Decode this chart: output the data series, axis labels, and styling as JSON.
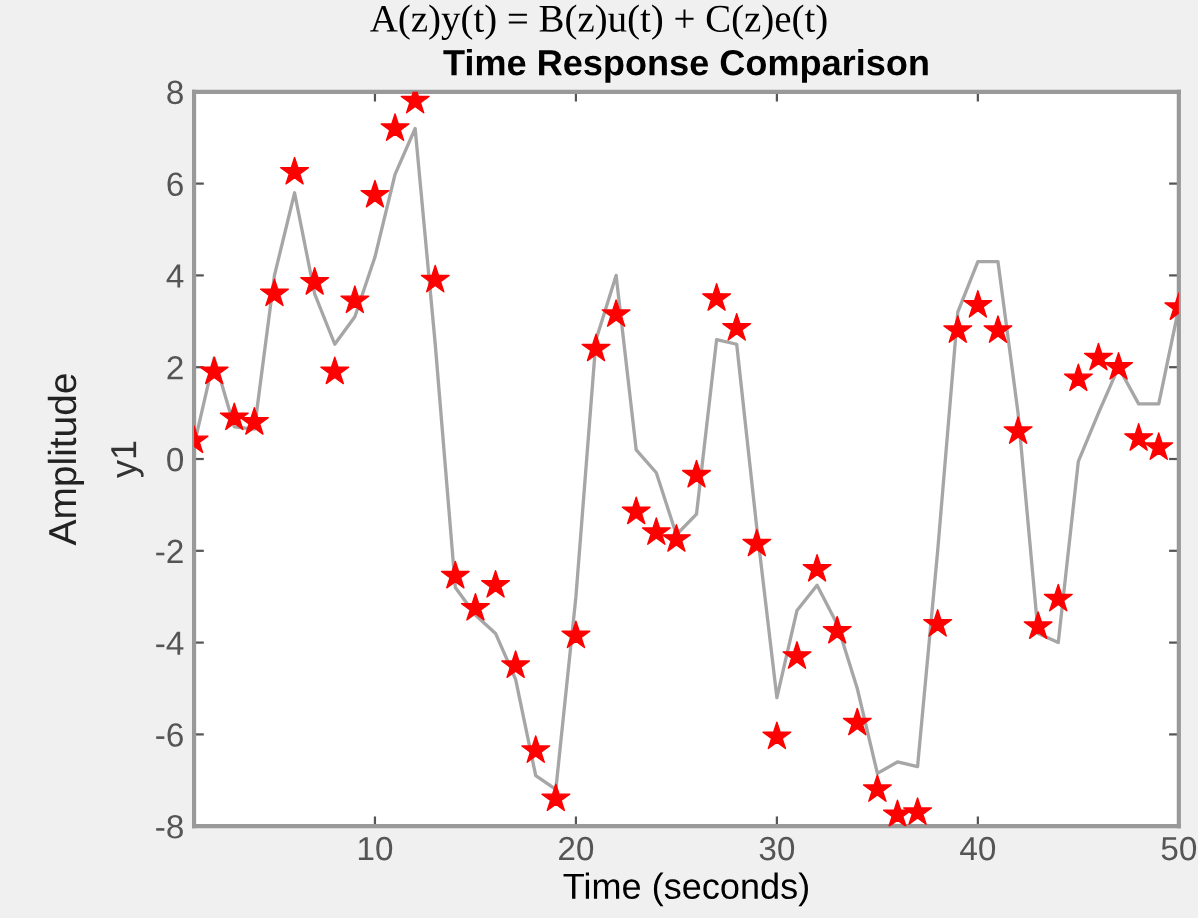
{
  "chart_data": {
    "type": "line",
    "title": "Time Response Comparison",
    "xlabel": "Time (seconds)",
    "ylabel": "y1",
    "annotations": [
      "A(z)y(t) = B(z)u(t) + C(z)e(t)",
      "Amplitude"
    ],
    "x": [
      1,
      2,
      3,
      4,
      5,
      6,
      7,
      8,
      9,
      10,
      11,
      12,
      13,
      14,
      15,
      16,
      17,
      18,
      19,
      20,
      21,
      22,
      23,
      24,
      25,
      26,
      27,
      28,
      29,
      30,
      31,
      32,
      33,
      34,
      35,
      36,
      37,
      38,
      39,
      40,
      41,
      42,
      43,
      44,
      45,
      46,
      47,
      48,
      49,
      50
    ],
    "series": [
      {
        "color": "#a6a6a6",
        "marker": "none",
        "line_style": "solid",
        "values": [
          0.3,
          2.2,
          0.7,
          0.65,
          4.0,
          5.8,
          3.6,
          2.5,
          3.1,
          4.4,
          6.2,
          7.2,
          2.5,
          -2.8,
          -3.4,
          -3.8,
          -4.8,
          -6.9,
          -7.2,
          -3.0,
          2.6,
          4.0,
          0.2,
          -0.3,
          -1.65,
          -1.2,
          2.6,
          2.5,
          -1.5,
          -5.2,
          -3.3,
          -2.75,
          -3.6,
          -5.0,
          -6.85,
          -6.6,
          -6.7,
          -2.0,
          3.2,
          4.3,
          4.3,
          1.0,
          -3.8,
          -4.0,
          -0.05,
          1.0,
          2.0,
          1.2,
          1.2,
          3.3
        ]
      },
      {
        "type": "scatter",
        "color": "#ff0000",
        "marker": "star",
        "values": [
          0.4,
          1.9,
          0.9,
          0.8,
          3.6,
          6.25,
          3.85,
          1.9,
          3.45,
          5.75,
          7.2,
          7.8,
          3.9,
          -2.55,
          -3.25,
          -2.75,
          -4.5,
          -6.35,
          -7.4,
          -3.85,
          2.4,
          3.15,
          -1.15,
          -1.6,
          -1.75,
          -0.35,
          3.5,
          2.85,
          -1.85,
          -6.05,
          -4.3,
          -2.4,
          -3.75,
          -5.75,
          -7.2,
          -7.75,
          -7.7,
          -3.6,
          2.8,
          3.35,
          2.8,
          0.6,
          -3.65,
          -3.05,
          1.75,
          2.2,
          2.0,
          0.45,
          0.25,
          3.3
        ]
      }
    ],
    "xlim": [
      1,
      50
    ],
    "xticks": [
      10,
      20,
      30,
      40,
      50
    ],
    "ylim": [
      -8,
      8
    ],
    "yticks": [
      -8,
      -6,
      -4,
      -2,
      0,
      2,
      4,
      6,
      8
    ],
    "grid": false,
    "legend": false
  }
}
